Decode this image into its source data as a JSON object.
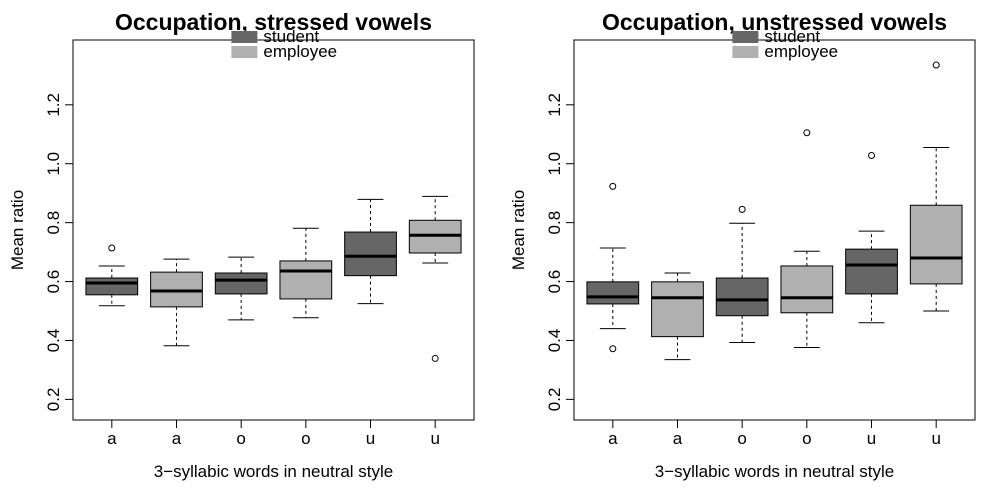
{
  "chart_data": [
    {
      "type": "box",
      "title": "Occupation, stressed vowels",
      "x_label": "3−syllabic words in neutral style",
      "y_label": "Mean ratio",
      "categories": [
        "a",
        "a",
        "o",
        "o",
        "u",
        "u"
      ],
      "ylim": [
        0.13,
        1.42
      ],
      "yticks": [
        0.2,
        0.4,
        0.6,
        0.8,
        {
          "value": 1,
          "label": "1.0"
        },
        1.2
      ],
      "series": [
        {
          "name": "student",
          "color": "#666666",
          "values": [
            {
              "min": 0.518,
              "q1": 0.555,
              "median": 0.595,
              "q3": 0.612,
              "max": 0.653,
              "outliers": [
                0.714
              ]
            },
            {
              "min": 0.47,
              "q1": 0.558,
              "median": 0.605,
              "q3": 0.629,
              "max": 0.683,
              "outliers": []
            },
            {
              "min": 0.525,
              "q1": 0.62,
              "median": 0.686,
              "q3": 0.768,
              "max": 0.879,
              "outliers": []
            }
          ]
        },
        {
          "name": "employee",
          "color": "#b0b0b0",
          "values": [
            {
              "min": 0.382,
              "q1": 0.514,
              "median": 0.568,
              "q3": 0.632,
              "max": 0.676,
              "outliers": []
            },
            {
              "min": 0.477,
              "q1": 0.541,
              "median": 0.636,
              "q3": 0.67,
              "max": 0.781,
              "outliers": []
            },
            {
              "min": 0.663,
              "q1": 0.697,
              "median": 0.757,
              "q3": 0.808,
              "max": 0.889,
              "outliers": [
                0.339
              ]
            }
          ]
        }
      ]
    },
    {
      "type": "box",
      "title": "Occupation, unstressed vowels",
      "x_label": "3−syllabic words in neutral style",
      "y_label": "Mean ratio",
      "categories": [
        "a",
        "a",
        "o",
        "o",
        "u",
        "u"
      ],
      "ylim": [
        0.13,
        1.42
      ],
      "yticks": [
        0.2,
        0.4,
        0.6,
        0.8,
        {
          "value": 1,
          "label": "1.0"
        },
        1.2
      ],
      "series": [
        {
          "name": "student",
          "color": "#666666",
          "values": [
            {
              "min": 0.44,
              "q1": 0.524,
              "median": 0.548,
              "q3": 0.599,
              "max": 0.714,
              "outliers": [
                0.923,
                0.372
              ]
            },
            {
              "min": 0.393,
              "q1": 0.484,
              "median": 0.538,
              "q3": 0.612,
              "max": 0.798,
              "outliers": [
                0.845
              ]
            },
            {
              "min": 0.46,
              "q1": 0.558,
              "median": 0.656,
              "q3": 0.71,
              "max": 0.771,
              "outliers": [
                1.028
              ]
            }
          ]
        },
        {
          "name": "employee",
          "color": "#b0b0b0",
          "values": [
            {
              "min": 0.335,
              "q1": 0.413,
              "median": 0.545,
              "q3": 0.599,
              "max": 0.629,
              "outliers": []
            },
            {
              "min": 0.376,
              "q1": 0.494,
              "median": 0.545,
              "q3": 0.653,
              "max": 0.703,
              "outliers": [
                1.105
              ]
            },
            {
              "min": 0.5,
              "q1": 0.592,
              "median": 0.68,
              "q3": 0.859,
              "max": 1.055,
              "outliers": [
                1.335
              ]
            }
          ]
        }
      ]
    }
  ]
}
